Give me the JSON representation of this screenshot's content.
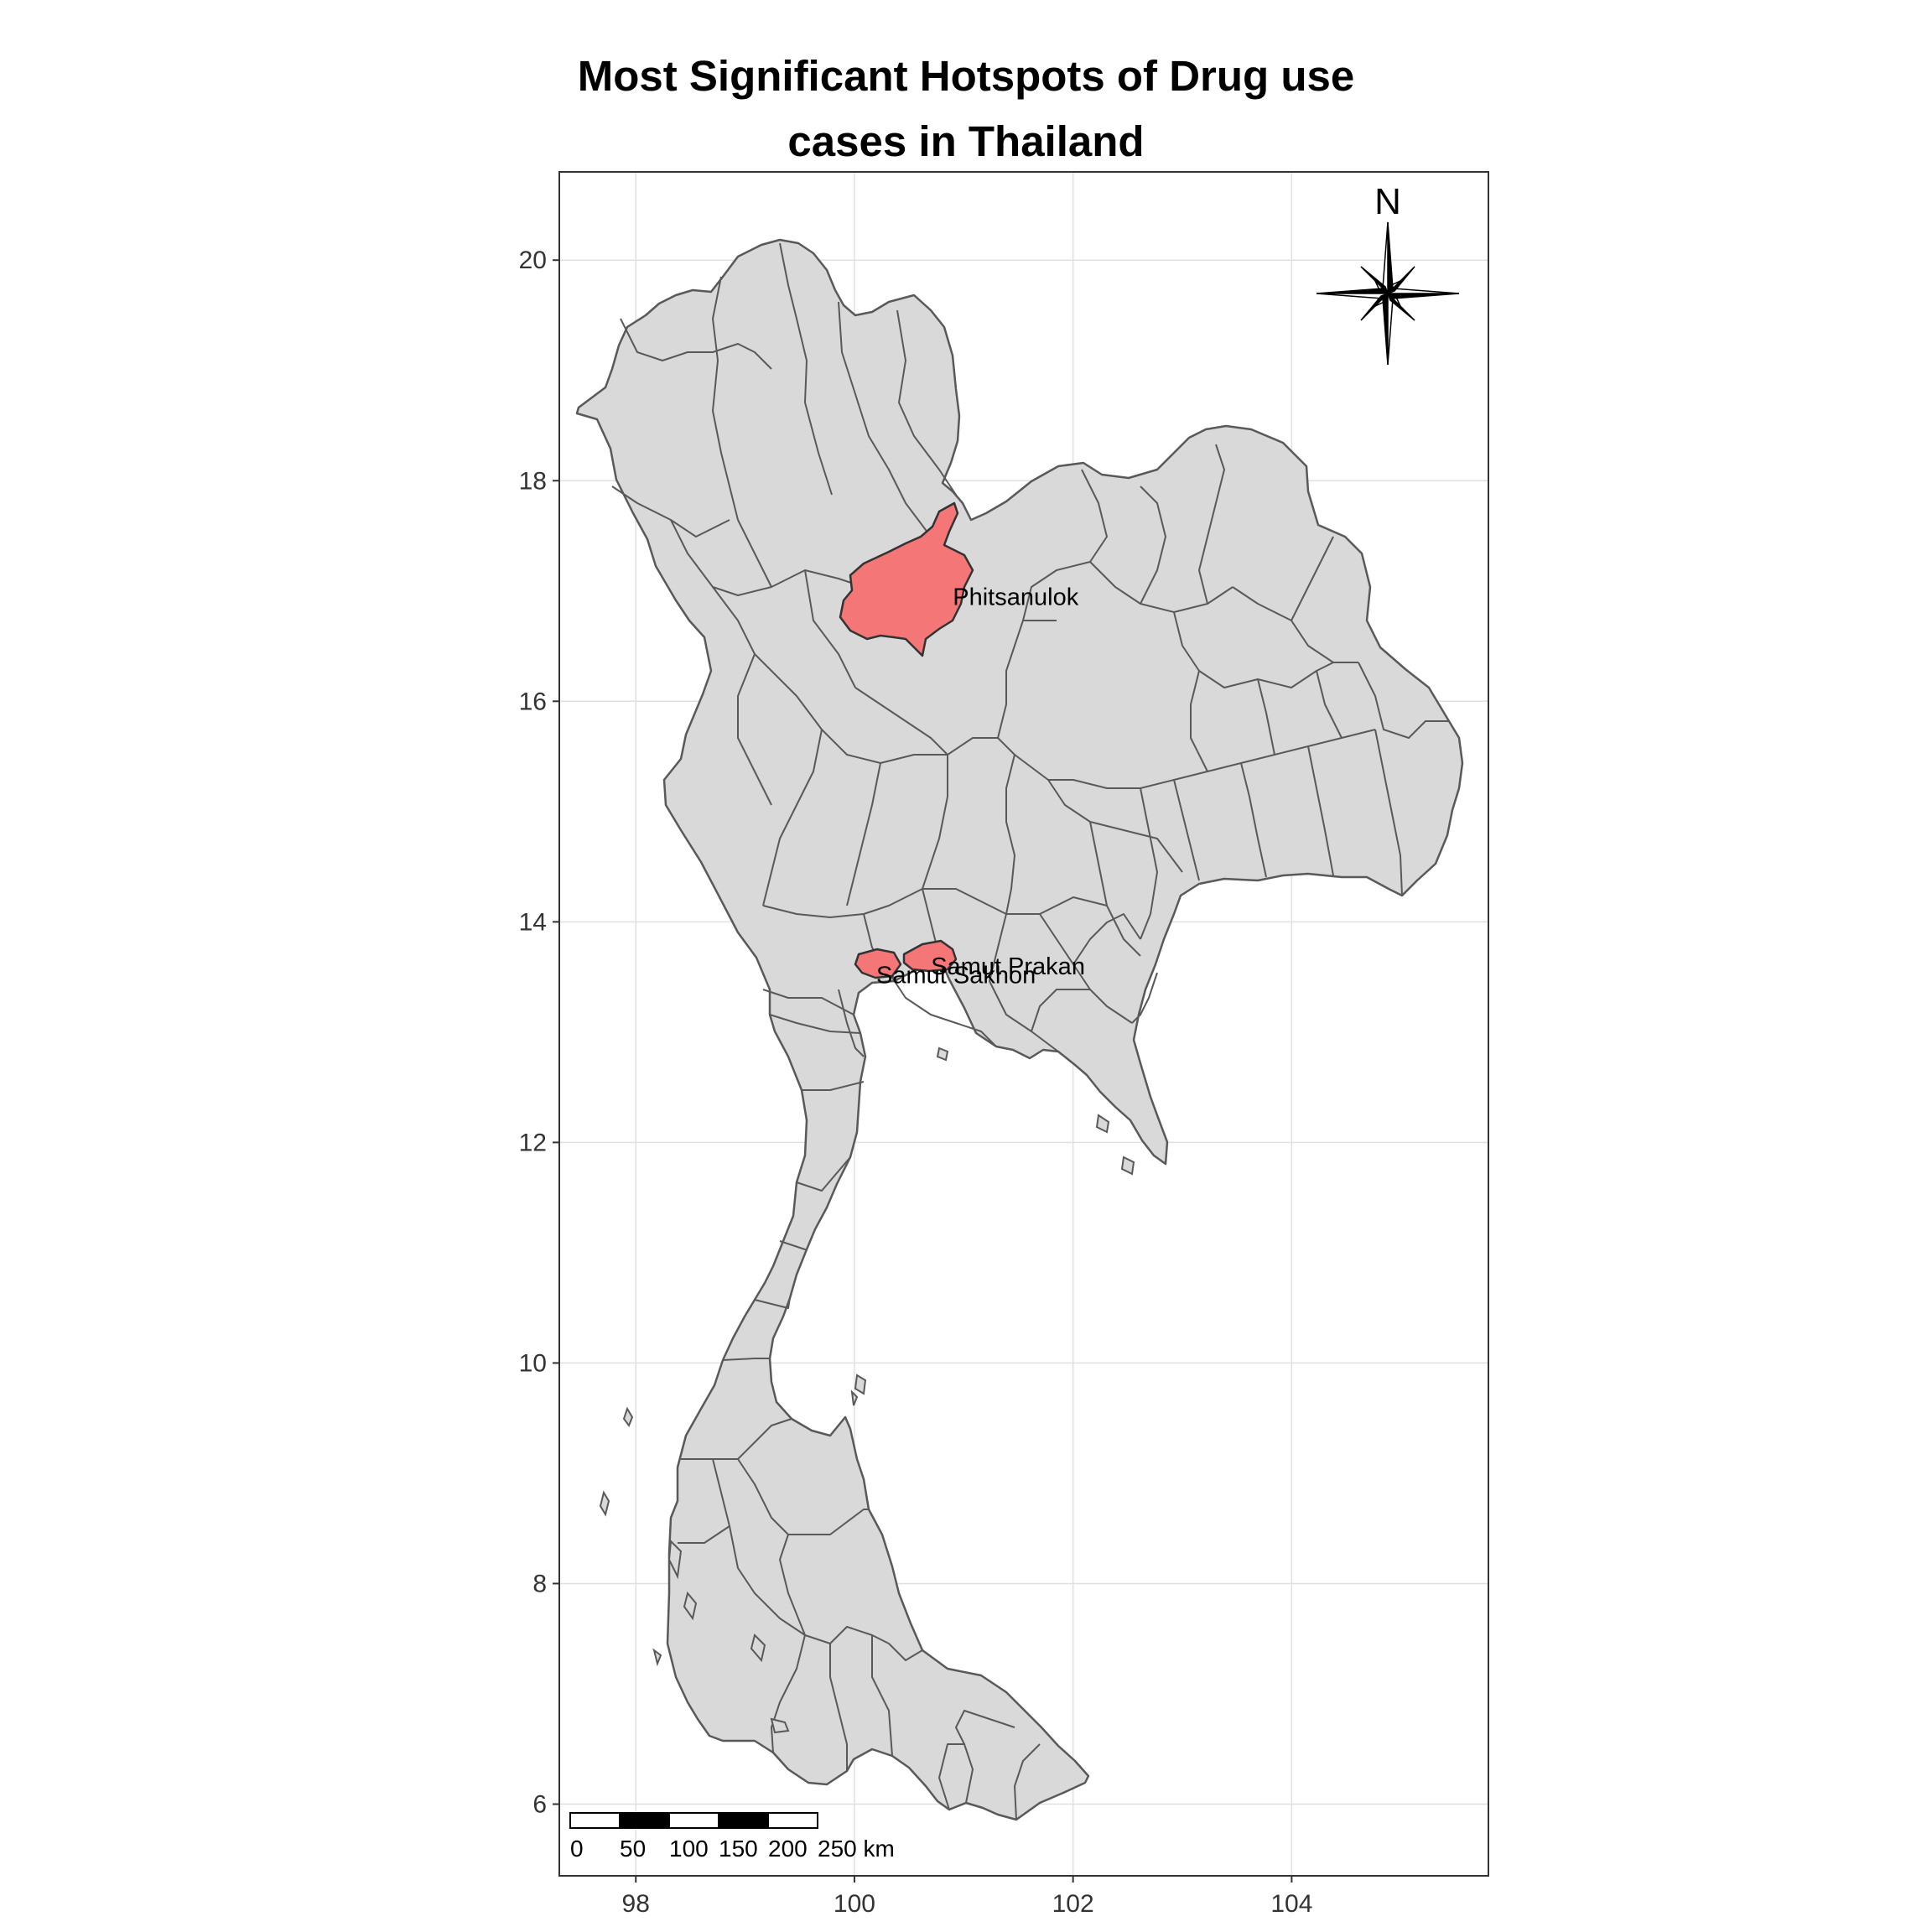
{
  "title": {
    "line1": "Most Significant Hotspots of Drug use",
    "line2": "cases in Thailand"
  },
  "colors": {
    "land": "#d9d9d9",
    "border": "#595959",
    "hotspot": "#f47676",
    "grid": "#e0e0e0",
    "frame": "#333333"
  },
  "chart_data": {
    "type": "map",
    "xlim": [
      97.3,
      105.8
    ],
    "ylim": [
      5.35,
      20.8
    ],
    "x_ticks": [
      98,
      100,
      102,
      104
    ],
    "y_ticks": [
      6,
      8,
      10,
      12,
      14,
      16,
      18,
      20
    ],
    "x_tick_labels": [
      "98",
      "100",
      "102",
      "104"
    ],
    "y_tick_labels": [
      "6",
      "8",
      "10",
      "12",
      "14",
      "16",
      "18",
      "20"
    ],
    "grid": true,
    "hotspots": [
      {
        "name": "Phitsanulok",
        "lon": 100.9,
        "lat": 16.95
      },
      {
        "name": "Samut Prakan",
        "lon": 100.7,
        "lat": 13.6
      },
      {
        "name": "Samut Sakhon",
        "lon": 100.2,
        "lat": 13.52
      }
    ],
    "north_arrow": {
      "label": "N",
      "position": "top-right"
    },
    "scale_bar": {
      "position": "bottom-left",
      "labels": [
        "0",
        "50",
        "100",
        "150",
        "200",
        "250 km"
      ]
    }
  }
}
